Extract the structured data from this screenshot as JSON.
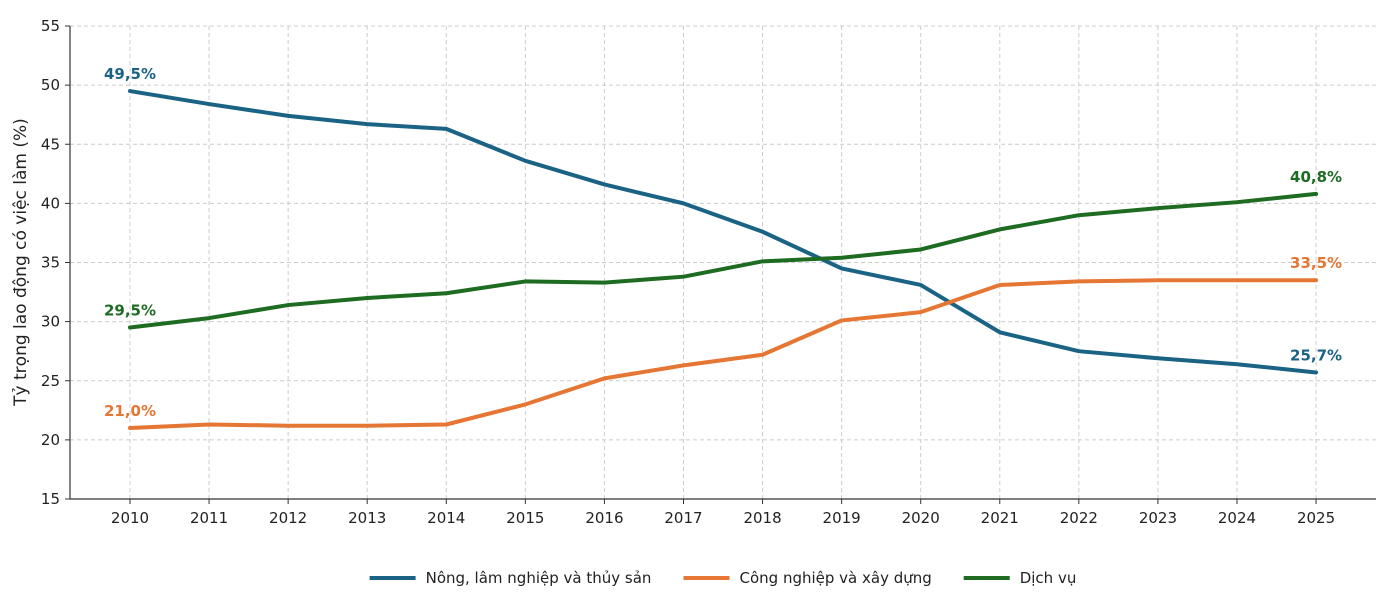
{
  "chart_data": {
    "type": "line",
    "title": "",
    "xlabel": "",
    "ylabel": "Tỷ trọng lao động có việc làm (%)",
    "ylim": [
      15,
      55
    ],
    "yticks": [
      15,
      20,
      25,
      30,
      35,
      40,
      45,
      50,
      55
    ],
    "x": [
      "2010",
      "2011",
      "2012",
      "2013",
      "2014",
      "2015",
      "2016",
      "2017",
      "2018",
      "2019",
      "2020",
      "2021",
      "2022",
      "2023",
      "2024",
      "2025"
    ],
    "grid": true,
    "legend_position": "bottom-center",
    "series": [
      {
        "name": "Nông, lâm nghiệp và thủy sản",
        "color": "#1b6385",
        "values": [
          49.5,
          48.4,
          47.4,
          46.7,
          46.3,
          43.6,
          41.6,
          40.0,
          37.6,
          34.5,
          33.1,
          29.1,
          27.5,
          26.9,
          26.4,
          25.7
        ],
        "start_label": "49,5%",
        "end_label": "25,7%"
      },
      {
        "name": "Công nghiệp và xây dựng",
        "color": "#e57634",
        "values": [
          21.0,
          21.3,
          21.2,
          21.2,
          21.3,
          23.0,
          25.2,
          26.3,
          27.2,
          30.1,
          30.8,
          33.1,
          33.4,
          33.5,
          33.5,
          33.5
        ],
        "start_label": "21,0%",
        "end_label": "33,5%"
      },
      {
        "name": "Dịch vụ",
        "color": "#1e6b22",
        "values": [
          29.5,
          30.3,
          31.4,
          32.0,
          32.4,
          33.4,
          33.3,
          33.8,
          35.1,
          35.4,
          36.1,
          37.8,
          39.0,
          39.6,
          40.1,
          40.8
        ],
        "start_label": "29,5%",
        "end_label": "40,8%"
      }
    ]
  }
}
